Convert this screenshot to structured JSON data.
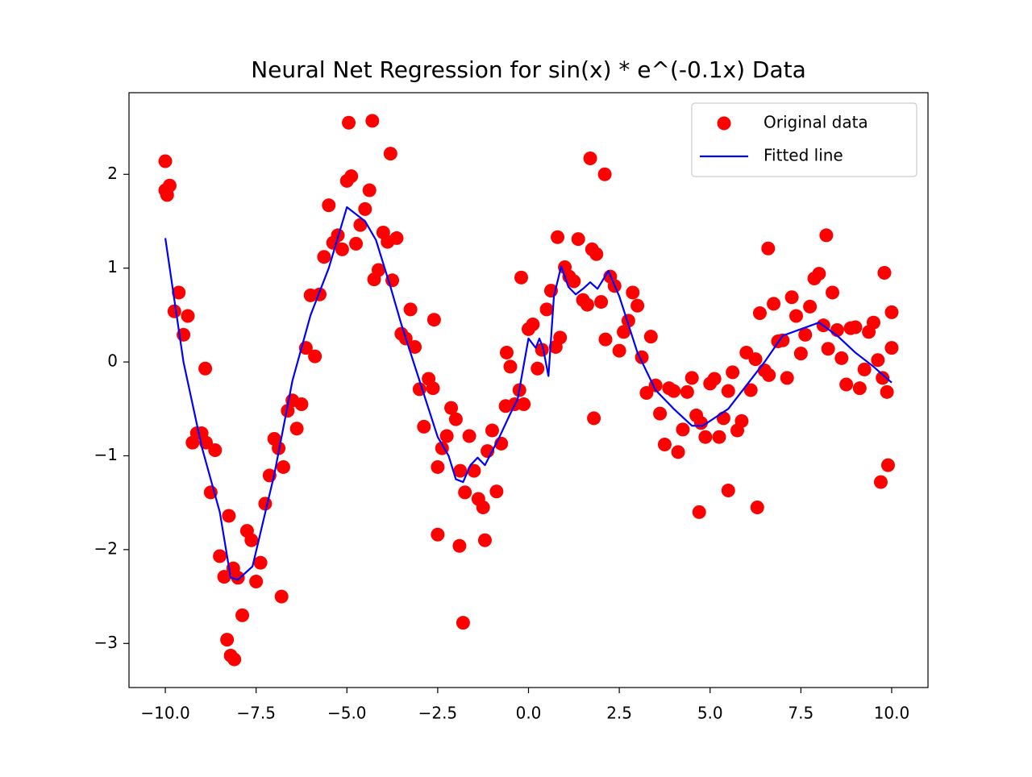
{
  "chart_data": {
    "type": "scatter",
    "title": "Neural Net Regression for sin(x) * e^(-0.1x) Data",
    "xlim": [
      -11,
      11
    ],
    "ylim": [
      -3.47,
      2.87
    ],
    "xticks": [
      {
        "value": -10,
        "label": "−10.0"
      },
      {
        "value": -7.5,
        "label": "−7.5"
      },
      {
        "value": -5,
        "label": "−5.0"
      },
      {
        "value": -2.5,
        "label": "−2.5"
      },
      {
        "value": 0,
        "label": "0.0"
      },
      {
        "value": 2.5,
        "label": "2.5"
      },
      {
        "value": 5,
        "label": "5.0"
      },
      {
        "value": 7.5,
        "label": "7.5"
      },
      {
        "value": 10,
        "label": "10.0"
      }
    ],
    "yticks": [
      {
        "value": -3,
        "label": "−3"
      },
      {
        "value": -2,
        "label": "−2"
      },
      {
        "value": -1,
        "label": "−1"
      },
      0,
      1,
      2
    ],
    "grid": false,
    "legend": "upper right",
    "series": [
      {
        "name": "Original data",
        "type": "scatter",
        "color": "#ff0000",
        "x": [
          -10,
          -9.75,
          -9.5,
          -9.25,
          -9,
          -8.75,
          -8.5,
          -8.25,
          -8,
          -7.75,
          -7.5,
          -7.25,
          -7,
          -6.75,
          -6.5,
          -6.25,
          -6,
          -5.75,
          -5.5,
          -5.25,
          -5,
          -4.75,
          -4.5,
          -4.25,
          -4,
          -3.75,
          -3.5,
          -3.25,
          -3,
          -2.75,
          -2.5,
          -2.25,
          -2,
          -1.75,
          -1.5,
          -1.25,
          -1,
          -0.75,
          -0.5,
          -0.25,
          0,
          0.25,
          0.5,
          0.75,
          1,
          1.25,
          1.5,
          1.75,
          2,
          2.25,
          2.5,
          2.75,
          3,
          3.25,
          3.5,
          3.75,
          4,
          4.25,
          4.5,
          4.75,
          5,
          5.25,
          5.5,
          5.75,
          6,
          6.25,
          6.5,
          6.75,
          7,
          7.25,
          7.5,
          7.75,
          8,
          8.25,
          8.5,
          8.75,
          9,
          9.25,
          9.5,
          9.75,
          10,
          -9.88,
          -9.63,
          -9.38,
          -9.13,
          -8.88,
          -8.63,
          -8.38,
          -8.13,
          -7.88,
          -7.63,
          -7.38,
          -7.13,
          -6.88,
          -6.63,
          -6.38,
          -6.13,
          -5.88,
          -5.63,
          -5.38,
          -5.13,
          -4.88,
          -4.63,
          -4.38,
          -4.13,
          -3.88,
          -3.63,
          -3.38,
          -3.13,
          -2.88,
          -2.63,
          -2.38,
          -2.13,
          -1.88,
          -1.63,
          -1.38,
          -1.13,
          -0.88,
          -0.63,
          -0.38,
          -0.13,
          0.12,
          0.37,
          0.62,
          0.87,
          1.12,
          1.37,
          1.62,
          1.87,
          2.12,
          2.37,
          2.62,
          2.87,
          3.12,
          3.37,
          3.62,
          3.87,
          4.12,
          4.37,
          4.62,
          4.87,
          5.12,
          5.37,
          5.62,
          5.87,
          6.12,
          6.37,
          6.62,
          6.87,
          7.12,
          7.37,
          7.62,
          7.87,
          8.12,
          8.37,
          8.62,
          8.87,
          9.12,
          9.37,
          9.62,
          9.87,
          -10,
          -9.95,
          -1.8,
          -4.3,
          -4.95,
          -3.8,
          1.7,
          2.1,
          -8.1,
          -8.3,
          -8.2,
          6.3,
          4.7,
          9.7,
          8.2,
          6.6,
          1.8,
          -8.9,
          -2.5,
          -1.2,
          -1.9,
          -0.6,
          -0.2,
          5.5,
          9.9,
          9.8,
          10,
          -6.8,
          -2.6,
          0.8
        ],
        "values": [
          1.83,
          0.54,
          0.29,
          -0.86,
          -0.76,
          -1.39,
          -2.07,
          -1.64,
          -2.3,
          -1.8,
          -2.34,
          -1.51,
          -0.82,
          -1.12,
          -0.41,
          -0.45,
          0.71,
          0.72,
          1.67,
          1.35,
          1.93,
          1.26,
          1.63,
          0.88,
          1.38,
          0.87,
          0.3,
          0.56,
          -0.29,
          -0.18,
          -1.12,
          -0.79,
          -0.61,
          -1.39,
          -1.16,
          -1.55,
          -0.73,
          -0.87,
          -0.05,
          -0.3,
          0.35,
          -0.07,
          0.56,
          0.16,
          1.01,
          0.86,
          0.66,
          1.2,
          0.64,
          0.91,
          0.12,
          0.44,
          0.6,
          -0.33,
          -0.25,
          -0.88,
          -0.31,
          -0.72,
          -0.17,
          -0.65,
          -0.23,
          -0.8,
          -0.31,
          -0.73,
          0.1,
          0.03,
          -0.09,
          0.62,
          0.23,
          0.69,
          0.09,
          0.59,
          0.94,
          0.14,
          0.34,
          -0.24,
          0.37,
          -0.08,
          0.42,
          -0.17,
          0.15,
          1.88,
          0.74,
          0.49,
          -0.76,
          -0.86,
          -0.94,
          -2.29,
          -2.2,
          -2.7,
          -1.9,
          -2.14,
          -1.21,
          -0.92,
          -0.52,
          -0.71,
          0.15,
          0.06,
          1.12,
          1.27,
          1.2,
          1.98,
          1.46,
          1.83,
          0.98,
          1.28,
          1.32,
          0.25,
          0.16,
          -0.69,
          -0.28,
          -0.92,
          -0.49,
          -1.16,
          -0.79,
          -1.46,
          -0.95,
          -1.38,
          -0.47,
          -0.45,
          -0.45,
          0.4,
          0.13,
          0.76,
          0.26,
          0.91,
          1.31,
          0.61,
          1.15,
          0.24,
          0.81,
          0.32,
          0.74,
          0.05,
          0.27,
          -0.55,
          -0.28,
          -0.96,
          -0.32,
          -0.57,
          -0.8,
          -0.18,
          -0.6,
          -0.11,
          -0.63,
          -0.3,
          0.52,
          -0.14,
          0.22,
          -0.17,
          0.49,
          0.29,
          0.89,
          0.39,
          0.74,
          0.04,
          0.36,
          -0.28,
          0.32,
          0.02,
          -0.32,
          2.14,
          1.78,
          -2.78,
          2.57,
          2.55,
          2.22,
          2.17,
          2.0,
          -3.17,
          -2.96,
          -3.13,
          -1.55,
          -1.6,
          -1.28,
          1.35,
          1.21,
          -0.6,
          -0.07,
          -1.84,
          -1.9,
          -1.96,
          0.1,
          0.9,
          -1.37,
          -1.1,
          0.95,
          0.53,
          -2.5,
          0.45,
          1.33
        ]
      },
      {
        "name": "Fitted line",
        "type": "line",
        "color": "#0000ff",
        "x": [
          -10,
          -9.5,
          -9,
          -8.5,
          -8.2,
          -8,
          -7.6,
          -7,
          -6.5,
          -6,
          -5.5,
          -5,
          -4.5,
          -4.2,
          -3.8,
          -3.5,
          -3,
          -2.5,
          -2.2,
          -2,
          -1.8,
          -1.6,
          -1.4,
          -1.2,
          -0.8,
          -0.5,
          -0.3,
          0,
          0.1,
          0.2,
          0.3,
          0.4,
          0.55,
          0.7,
          0.9,
          1.1,
          1.3,
          1.5,
          1.7,
          1.9,
          2.2,
          2.5,
          3,
          3.5,
          4,
          4.5,
          4.8,
          5.5,
          6,
          6.5,
          7,
          7.5,
          8,
          8.5,
          9,
          9.5,
          10
        ],
        "values": [
          1.32,
          0.0,
          -0.9,
          -1.6,
          -2.3,
          -2.32,
          -2.18,
          -1.2,
          -0.2,
          0.5,
          1.0,
          1.65,
          1.5,
          1.3,
          0.8,
          0.4,
          -0.2,
          -0.8,
          -1.0,
          -1.25,
          -1.28,
          -1.1,
          -1.02,
          -1.1,
          -0.8,
          -0.55,
          -0.4,
          0.25,
          0.2,
          0.15,
          0.25,
          0.15,
          -0.15,
          0.7,
          1.02,
          0.8,
          0.72,
          0.78,
          0.85,
          0.78,
          0.97,
          0.7,
          0.1,
          -0.3,
          -0.5,
          -0.68,
          -0.68,
          -0.5,
          -0.25,
          0.0,
          0.28,
          0.35,
          0.42,
          0.28,
          0.1,
          -0.05,
          -0.22
        ]
      }
    ]
  }
}
